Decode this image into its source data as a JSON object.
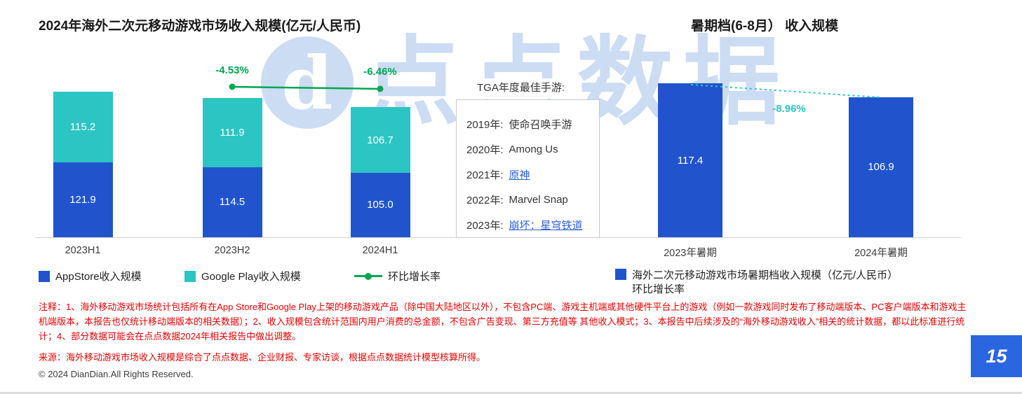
{
  "titles": {
    "left": "2024年海外二次元移动游戏市场收入规模(亿元/人民币)",
    "right": "暑期档(6-8月） 收入规模"
  },
  "watermark": {
    "logo": "d",
    "text": "点点数据"
  },
  "chart_data": [
    {
      "type": "bar",
      "stacked": true,
      "title": "2024年海外二次元移动游戏市场收入规模(亿元/人民币)",
      "categories": [
        "2023H1",
        "2023H2",
        "2024H1"
      ],
      "series": [
        {
          "name": "AppStore收入规模",
          "color": "#2154CC",
          "values": [
            121.9,
            114.5,
            105.0
          ]
        },
        {
          "name": "Google Play收入规模",
          "color": "#2BC5C3",
          "values": [
            115.2,
            111.9,
            106.7
          ]
        }
      ],
      "growth_line": {
        "name": "环比增长率",
        "color": "#00A651",
        "labels": [
          "-4.53%",
          "-6.46%"
        ]
      },
      "unit": "亿元/人民币",
      "legend_position": "bottom",
      "grid": false
    },
    {
      "type": "bar",
      "stacked": false,
      "title": "暑期档(6-8月） 收入规模",
      "categories": [
        "2023年暑期",
        "2024年暑期"
      ],
      "series": [
        {
          "name": "海外二次元移动游戏市场暑期档收入规模（亿元/人民币）",
          "color": "#2154CC",
          "values": [
            117.4,
            106.9
          ]
        }
      ],
      "growth_line": {
        "name": "环比增长率",
        "color": "#2BC5C3",
        "labels": [
          "-8.96%"
        ]
      },
      "unit": "亿元/人民币",
      "legend_position": "bottom",
      "grid": false
    }
  ],
  "tga": {
    "title": "TGA年度最佳手游:",
    "items": [
      {
        "year": "2019年:",
        "game": "使命召唤手游",
        "is_link": false
      },
      {
        "year": "2020年:",
        "game": "Among Us",
        "is_link": false
      },
      {
        "year": "2021年:",
        "game": "原神",
        "is_link": true
      },
      {
        "year": "2022年:",
        "game": "Marvel Snap",
        "is_link": false
      },
      {
        "year": "2023年:",
        "game": "崩坏：星穹铁道",
        "is_link": true
      }
    ]
  },
  "notes": {
    "body": "注释：1、海外移动游戏市场统计包括所有在App Store和Google Play上架的移动游戏产品（除中国大陆地区以外），不包含PC端、游戏主机端或其他硬件平台上的游戏（例如一款游戏同时发布了移动端版本、PC客户端版本和游戏主机端版本，本报告也仅统计移动端版本的相关数据）；2、收入规模包含统计范围内用户消费的总金额，不包含广告变现、第三方充值等 其他收入模式；3、本报告中后续涉及的“海外移动游戏收入”相关的统计数据，都以此标准进行统计；4、部分数据可能会在点点数据2024年相关报告中做出调整。",
    "source": "来源：海外移动游戏市场收入规模是综合了点点数据、企业财报、专家访谈，根据点点数据统计模型核算所得。"
  },
  "footer": {
    "copyright": "© 2024 DianDian.All Rights Reserved.",
    "page_number": "15"
  }
}
